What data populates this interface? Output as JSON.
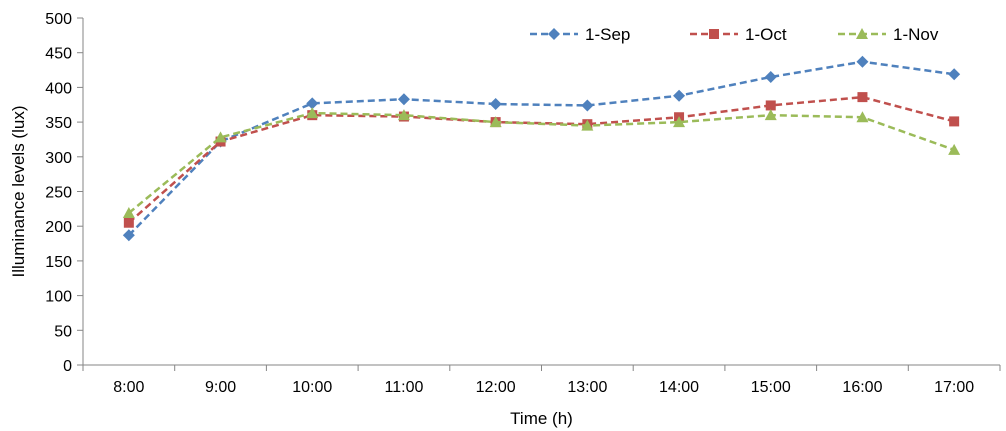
{
  "chart_data": {
    "type": "line",
    "title": "",
    "xlabel": "Time (h)",
    "ylabel": "Illuminance  levels  (lux)",
    "categories": [
      "8:00",
      "9:00",
      "10:00",
      "11:00",
      "12:00",
      "13:00",
      "14:00",
      "15:00",
      "16:00",
      "17:00"
    ],
    "ylim": [
      0,
      500
    ],
    "yticks": [
      0,
      50,
      100,
      150,
      200,
      250,
      300,
      350,
      400,
      450,
      500
    ],
    "ytick_labels": [
      "0",
      "50",
      "100",
      "150",
      "200",
      "250",
      "300",
      "350",
      "400",
      "450",
      "500"
    ],
    "grid": false,
    "legend_position": "top-right",
    "series": [
      {
        "name": "1-Sep",
        "color": "#4F81BD",
        "marker": "diamond",
        "values": [
          187,
          322,
          377,
          383,
          376,
          374,
          388,
          415,
          437,
          419
        ]
      },
      {
        "name": "1-Oct",
        "color": "#C0504D",
        "marker": "square",
        "values": [
          205,
          322,
          360,
          358,
          350,
          347,
          357,
          374,
          386,
          351
        ]
      },
      {
        "name": "1-Nov",
        "color": "#9BBB59",
        "marker": "triangle",
        "values": [
          219,
          328,
          363,
          360,
          350,
          345,
          350,
          360,
          357,
          310
        ]
      }
    ]
  }
}
